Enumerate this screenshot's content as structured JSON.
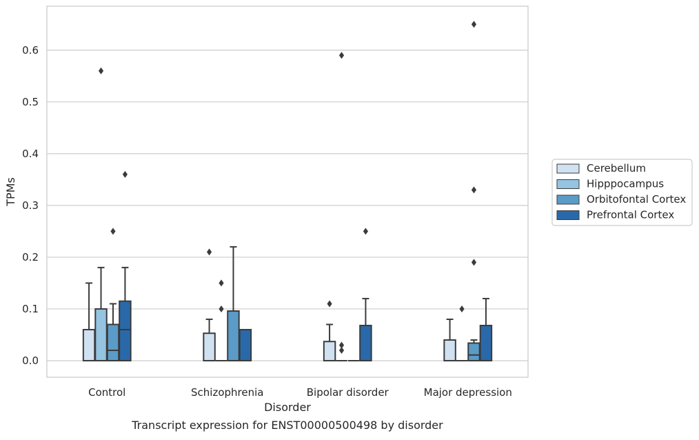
{
  "chart_data": {
    "type": "box",
    "title": "",
    "caption": "Transcript expression for ENST00000500498 by disorder",
    "xlabel": "Disorder",
    "ylabel": "TPMs",
    "ylim": [
      -0.032,
      0.685
    ],
    "yticks": [
      0.0,
      0.1,
      0.2,
      0.3,
      0.4,
      0.5,
      0.6
    ],
    "ytick_labels": [
      "0.0",
      "0.1",
      "0.2",
      "0.3",
      "0.4",
      "0.5",
      "0.6"
    ],
    "grid": "horizontal",
    "legend_position": "right",
    "categories": [
      "Control",
      "Schizophrenia",
      "Bipolar disorder",
      "Major depression"
    ],
    "series": [
      {
        "name": "Cerebellum",
        "color": "#d0e1f2",
        "boxes": [
          {
            "q1": 0.0,
            "median": 0.0,
            "q3": 0.06,
            "whisker_low": 0.0,
            "whisker_high": 0.15,
            "outliers": []
          },
          {
            "q1": 0.0,
            "median": 0.0,
            "q3": 0.053,
            "whisker_low": 0.0,
            "whisker_high": 0.08,
            "outliers": [
              0.21
            ]
          },
          {
            "q1": 0.0,
            "median": 0.0,
            "q3": 0.037,
            "whisker_low": 0.0,
            "whisker_high": 0.07,
            "outliers": [
              0.11
            ]
          },
          {
            "q1": 0.0,
            "median": 0.0,
            "q3": 0.04,
            "whisker_low": 0.0,
            "whisker_high": 0.08,
            "outliers": []
          }
        ]
      },
      {
        "name": "Hipppocampus",
        "color": "#94c4df",
        "boxes": [
          {
            "q1": 0.0,
            "median": 0.0,
            "q3": 0.1,
            "whisker_low": 0.0,
            "whisker_high": 0.18,
            "outliers": [
              0.56
            ]
          },
          {
            "q1": 0.0,
            "median": 0.0,
            "q3": 0.0,
            "whisker_low": 0.0,
            "whisker_high": 0.0,
            "outliers": [
              0.1,
              0.15
            ]
          },
          {
            "q1": 0.0,
            "median": 0.0,
            "q3": 0.0,
            "whisker_low": 0.0,
            "whisker_high": 0.0,
            "outliers": [
              0.02,
              0.03,
              0.59
            ]
          },
          {
            "q1": 0.0,
            "median": 0.0,
            "q3": 0.0,
            "whisker_low": 0.0,
            "whisker_high": 0.0,
            "outliers": [
              0.1
            ]
          }
        ]
      },
      {
        "name": "Orbitofontal Cortex",
        "color": "#5b9bc8",
        "boxes": [
          {
            "q1": 0.0,
            "median": 0.02,
            "q3": 0.07,
            "whisker_low": 0.0,
            "whisker_high": 0.11,
            "outliers": [
              0.25
            ]
          },
          {
            "q1": 0.0,
            "median": 0.0,
            "q3": 0.096,
            "whisker_low": 0.0,
            "whisker_high": 0.22,
            "outliers": []
          },
          {
            "q1": 0.0,
            "median": 0.0,
            "q3": 0.0,
            "whisker_low": 0.0,
            "whisker_high": 0.0,
            "outliers": []
          },
          {
            "q1": 0.0,
            "median": 0.011,
            "q3": 0.034,
            "whisker_low": 0.0,
            "whisker_high": 0.04,
            "outliers": [
              0.19,
              0.33,
              0.65
            ]
          }
        ]
      },
      {
        "name": "Prefrontal Cortex",
        "color": "#2a69a9",
        "boxes": [
          {
            "q1": 0.0,
            "median": 0.06,
            "q3": 0.115,
            "whisker_low": 0.0,
            "whisker_high": 0.18,
            "outliers": [
              0.36
            ]
          },
          {
            "q1": 0.0,
            "median": 0.0,
            "q3": 0.06,
            "whisker_low": 0.0,
            "whisker_high": 0.06,
            "outliers": []
          },
          {
            "q1": 0.0,
            "median": 0.0,
            "q3": 0.068,
            "whisker_low": 0.0,
            "whisker_high": 0.12,
            "outliers": [
              0.25
            ]
          },
          {
            "q1": 0.0,
            "median": 0.0,
            "q3": 0.068,
            "whisker_low": 0.0,
            "whisker_high": 0.12,
            "outliers": []
          }
        ]
      }
    ]
  }
}
